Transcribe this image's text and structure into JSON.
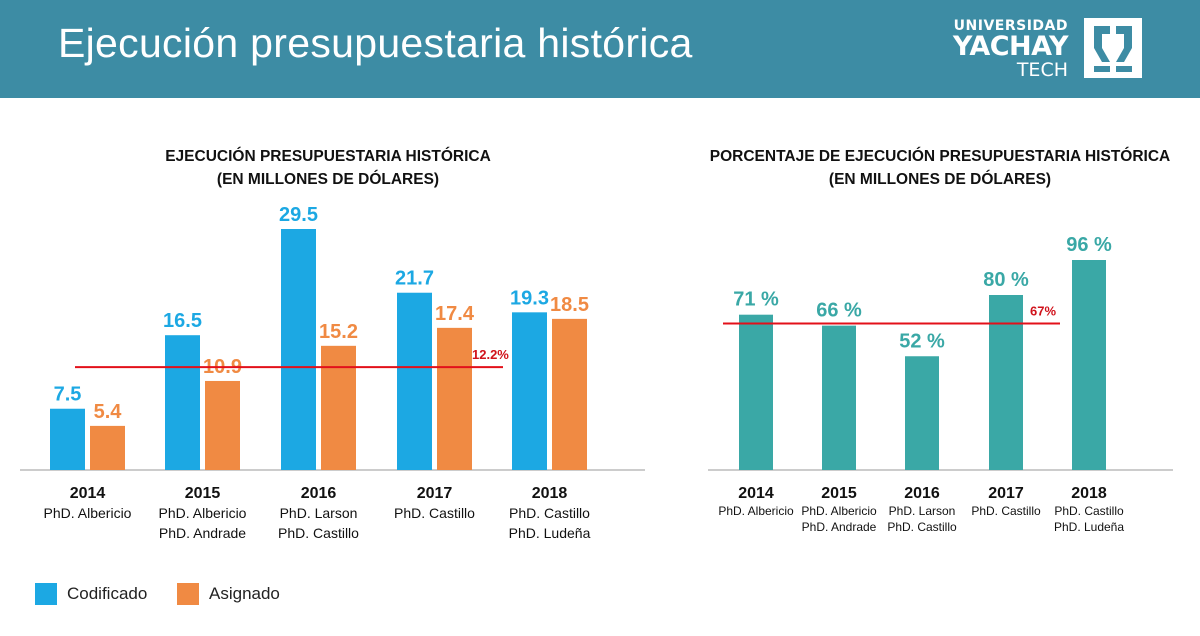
{
  "header": {
    "title": "Ejecución presupuestaria histórica"
  },
  "logo": {
    "line1": "UNIVERSIDAD",
    "line2": "YACHAY",
    "line3": "TECH"
  },
  "colors": {
    "header_bg": "#3d8ca4",
    "codificado": "#1ca8e3",
    "asignado": "#f08a43",
    "porcentaje": "#3aa8a6",
    "reference": "#e3101a",
    "reference_label": "#d0121b"
  },
  "legend": {
    "codificado": "Codificado",
    "asignado": "Asignado"
  },
  "chart_data": [
    {
      "type": "bar",
      "title": "EJECUCIÓN PRESUPUESTARIA HISTÓRICA",
      "subtitle": "(EN MILLONES DE DÓLARES)",
      "categories": [
        "2014",
        "2015",
        "2016",
        "2017",
        "2018"
      ],
      "category_sublabels": [
        [
          "PhD. Albericio"
        ],
        [
          "PhD. Albericio",
          "PhD. Andrade"
        ],
        [
          "PhD. Larson",
          "PhD. Castillo"
        ],
        [
          "PhD. Castillo"
        ],
        [
          "PhD. Castillo",
          "PhD. Ludeña"
        ]
      ],
      "series": [
        {
          "name": "Codificado",
          "values": [
            7.5,
            16.5,
            29.5,
            21.7,
            19.3
          ],
          "labels": [
            "7.5",
            "16.5",
            "29.5",
            "21.7",
            "19.3"
          ]
        },
        {
          "name": "Asignado",
          "values": [
            5.4,
            10.9,
            15.2,
            17.4,
            18.5
          ],
          "labels": [
            "5.4",
            "10.9",
            "15.2",
            "17.4",
            "18.5"
          ]
        }
      ],
      "reference_line": {
        "value": 12.6,
        "label": "12.2%"
      },
      "ylim": [
        0,
        30
      ],
      "legend_position": "bottom-left"
    },
    {
      "type": "bar",
      "title": "PORCENTAJE DE EJECUCIÓN PRESUPUESTARIA HISTÓRICA",
      "subtitle": "(EN MILLONES DE DÓLARES)",
      "categories": [
        "2014",
        "2015",
        "2016",
        "2017",
        "2018"
      ],
      "category_sublabels": [
        [
          "PhD. Albericio"
        ],
        [
          "PhD. Albericio",
          "PhD. Andrade"
        ],
        [
          "PhD. Larson",
          "PhD. Castillo"
        ],
        [
          "PhD. Castillo"
        ],
        [
          "PhD. Castillo",
          "PhD. Ludeña"
        ]
      ],
      "series": [
        {
          "name": "",
          "values": [
            71,
            66,
            52,
            80,
            96
          ],
          "labels": [
            "71 %",
            "66 %",
            "52 %",
            "80 %",
            "96 %"
          ]
        }
      ],
      "reference_line": {
        "value": 67,
        "label": "67%"
      },
      "ylim": [
        0,
        100
      ]
    }
  ]
}
